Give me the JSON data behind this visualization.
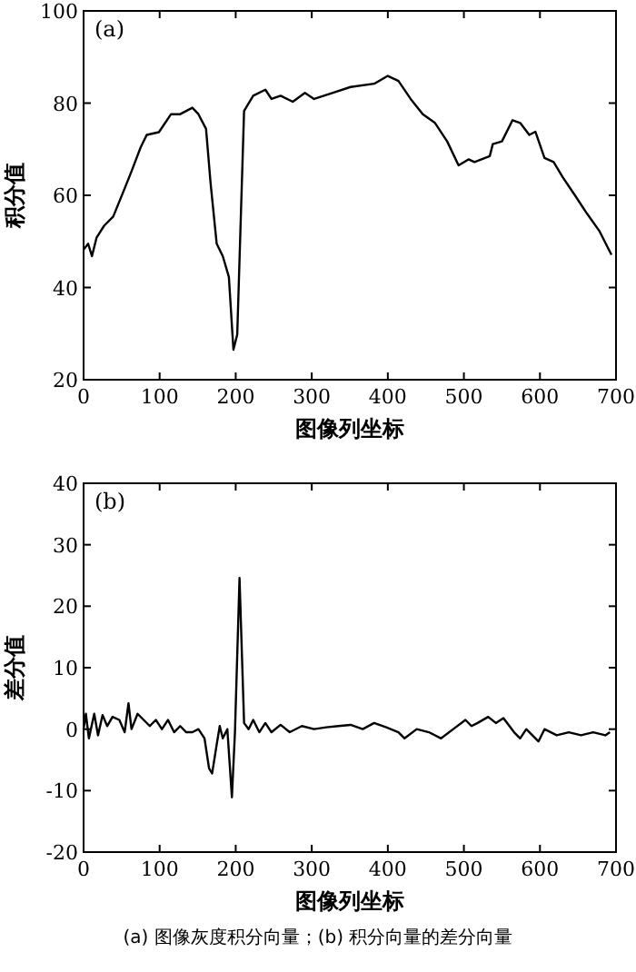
{
  "chart_data": [
    {
      "type": "line",
      "title": "(a)",
      "xlabel": "图像列坐标",
      "ylabel": "积分值",
      "xlim": [
        0,
        700
      ],
      "ylim": [
        20,
        100
      ],
      "xticks": [
        0,
        100,
        200,
        300,
        400,
        500,
        600,
        700
      ],
      "yticks": [
        20,
        40,
        60,
        80,
        100
      ],
      "grid": false,
      "series": [
        {
          "color": "#000000",
          "x": [
            0,
            6,
            11,
            17,
            27,
            39,
            55,
            63,
            75,
            83,
            99,
            115,
            127,
            143,
            151,
            161,
            167,
            175,
            183,
            191,
            197,
            202,
            211,
            223,
            239,
            247,
            259,
            275,
            291,
            303,
            327,
            351,
            382,
            400,
            414,
            430,
            446,
            462,
            478,
            493,
            506,
            514,
            534,
            538,
            550,
            564,
            574,
            586,
            594,
            606,
            618,
            630,
            646,
            662,
            678,
            694
          ],
          "values": [
            48.2,
            49.5,
            46.8,
            50.8,
            53.4,
            55.4,
            61.9,
            65.2,
            70.4,
            73.1,
            73.7,
            77.6,
            77.6,
            79,
            77.6,
            74.4,
            62.6,
            49.5,
            46.8,
            42.3,
            26.5,
            29.8,
            78.3,
            81.6,
            82.9,
            80.9,
            81.6,
            80.3,
            82.2,
            80.9,
            82.2,
            83.5,
            84.2,
            85.9,
            84.8,
            80.9,
            77.6,
            75.7,
            71.7,
            66.5,
            67.8,
            67.2,
            68.5,
            71.1,
            71.7,
            76.3,
            75.7,
            73.1,
            73.8,
            68.1,
            67.2,
            63.9,
            60,
            56,
            52.3,
            47.1
          ]
        }
      ]
    },
    {
      "type": "line",
      "title": "(b)",
      "xlabel": "图像列坐标",
      "ylabel": "差分值",
      "xlim": [
        0,
        700
      ],
      "ylim": [
        -20,
        40
      ],
      "xticks": [
        0,
        100,
        200,
        300,
        400,
        500,
        600,
        700
      ],
      "yticks": [
        -20,
        -10,
        0,
        10,
        20,
        30,
        40
      ],
      "grid": false,
      "annotations": [
        "(a) 图像灰度积分向量；(b) 积分向量的差分向量"
      ],
      "series": [
        {
          "color": "#000000",
          "x": [
            0,
            3,
            7,
            14,
            19,
            25,
            31,
            38,
            47,
            54,
            59,
            63,
            71,
            79,
            87,
            95,
            103,
            111,
            119,
            127,
            135,
            143,
            151,
            159,
            165,
            169,
            175,
            179,
            183,
            189,
            195,
            199,
            205,
            211,
            217,
            223,
            231,
            239,
            247,
            259,
            271,
            287,
            303,
            319,
            335,
            351,
            367,
            382,
            398,
            414,
            422,
            438,
            454,
            470,
            486,
            502,
            510,
            518,
            532,
            542,
            552,
            566,
            574,
            582,
            598,
            606,
            622,
            638,
            654,
            670,
            686,
            692
          ],
          "values": [
            0,
            2.5,
            -1.5,
            2.5,
            -1,
            2.3,
            0.5,
            2,
            1.5,
            -0.5,
            4.2,
            0,
            2.5,
            1.5,
            0.5,
            1.5,
            0,
            1.5,
            -0.5,
            0.5,
            -0.5,
            -0.5,
            0,
            -1.5,
            -6.4,
            -7.2,
            -2.5,
            0.5,
            -1.5,
            0,
            -11.1,
            -0.5,
            24.6,
            1,
            0,
            1.5,
            -0.5,
            1,
            -0.5,
            0.7,
            -0.5,
            0.5,
            0,
            0.3,
            0.5,
            0.7,
            0,
            1,
            0.3,
            -0.5,
            -1.5,
            0,
            -0.5,
            -1.5,
            0,
            1.5,
            0.5,
            1,
            2,
            1,
            1.8,
            -0.5,
            -1.5,
            0,
            -2,
            0,
            -1,
            -0.5,
            -1,
            -0.5,
            -1,
            -0.5
          ]
        }
      ]
    }
  ]
}
